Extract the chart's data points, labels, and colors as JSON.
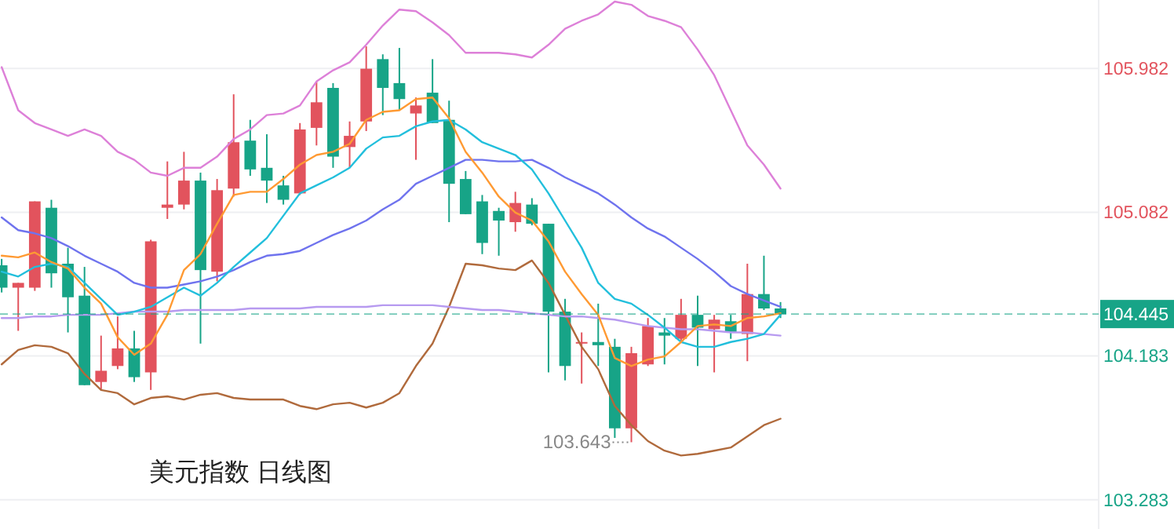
{
  "chart_data": {
    "type": "candlestick",
    "title": "美元指数 日线图",
    "categories": [
      null,
      null,
      null,
      null,
      null,
      null,
      null,
      null,
      null,
      null,
      null,
      null,
      null,
      null,
      null,
      null,
      null,
      null,
      null,
      null,
      null,
      null,
      null,
      null,
      null,
      null,
      null,
      null,
      null,
      null,
      null,
      null,
      null,
      null,
      null,
      null,
      null,
      null,
      null,
      null,
      null,
      null,
      null,
      null,
      null,
      null,
      null,
      null
    ],
    "ohlc": [
      [
        104.75,
        104.79,
        104.58,
        104.61
      ],
      [
        104.61,
        104.64,
        104.34,
        104.64
      ],
      [
        104.61,
        105.15,
        104.59,
        105.15
      ],
      [
        105.11,
        105.16,
        104.61,
        104.7
      ],
      [
        104.76,
        104.86,
        104.33,
        104.55
      ],
      [
        104.56,
        104.74,
        104.0,
        104.0
      ],
      [
        104.02,
        104.31,
        103.97,
        104.09
      ],
      [
        104.12,
        104.43,
        104.1,
        104.23
      ],
      [
        104.23,
        104.34,
        104.02,
        104.05
      ],
      [
        104.08,
        104.91,
        103.97,
        104.9
      ],
      [
        105.11,
        105.4,
        105.04,
        105.13
      ],
      [
        105.13,
        105.46,
        105.1,
        105.28
      ],
      [
        105.28,
        105.33,
        104.26,
        104.72
      ],
      [
        104.71,
        105.29,
        104.65,
        105.22
      ],
      [
        105.23,
        105.82,
        105.18,
        105.52
      ],
      [
        105.53,
        105.66,
        105.31,
        105.35
      ],
      [
        105.36,
        105.57,
        105.14,
        105.28
      ],
      [
        105.25,
        105.31,
        105.13,
        105.16
      ],
      [
        105.2,
        105.64,
        105.19,
        105.6
      ],
      [
        105.61,
        105.9,
        105.5,
        105.77
      ],
      [
        105.86,
        105.89,
        105.36,
        105.43
      ],
      [
        105.49,
        105.65,
        105.36,
        105.56
      ],
      [
        105.65,
        106.12,
        105.59,
        105.98
      ],
      [
        106.04,
        106.07,
        105.69,
        105.86
      ],
      [
        105.89,
        106.11,
        105.72,
        105.79
      ],
      [
        105.7,
        105.8,
        105.41,
        105.75
      ],
      [
        105.83,
        106.04,
        105.64,
        105.64
      ],
      [
        105.66,
        105.78,
        105.02,
        105.26
      ],
      [
        105.29,
        105.34,
        105.07,
        105.07
      ],
      [
        105.15,
        105.19,
        104.82,
        104.89
      ],
      [
        105.09,
        105.11,
        104.81,
        105.03
      ],
      [
        105.02,
        105.21,
        104.96,
        105.14
      ],
      [
        105.13,
        105.17,
        105.0,
        105.01
      ],
      [
        105.01,
        105.01,
        104.08,
        104.46
      ],
      [
        104.46,
        104.54,
        104.03,
        104.12
      ],
      [
        104.26,
        104.33,
        104.01,
        104.27
      ],
      [
        104.27,
        104.51,
        104.12,
        104.25
      ],
      [
        104.24,
        104.29,
        103.67,
        103.73
      ],
      [
        103.73,
        104.24,
        103.643,
        104.2
      ],
      [
        104.13,
        104.42,
        104.12,
        104.37
      ],
      [
        104.33,
        104.42,
        104.13,
        104.31
      ],
      [
        104.29,
        104.54,
        104.27,
        104.44
      ],
      [
        104.44,
        104.56,
        104.12,
        104.36
      ],
      [
        104.35,
        104.44,
        104.08,
        104.41
      ],
      [
        104.4,
        104.44,
        104.29,
        104.33
      ],
      [
        104.32,
        104.76,
        104.15,
        104.57
      ],
      [
        104.57,
        104.81,
        104.47,
        104.48
      ],
      [
        104.48,
        104.52,
        104.42,
        104.445
      ]
    ],
    "colors": [
      "#17a487",
      "#e2535d",
      "#e2535d",
      "#17a487",
      "#17a487",
      "#17a487",
      "#e2535d",
      "#e2535d",
      "#17a487",
      "#e2535d",
      "#e2535d",
      "#e2535d",
      "#17a487",
      "#e2535d",
      "#e2535d",
      "#17a487",
      "#17a487",
      "#17a487",
      "#e2535d",
      "#e2535d",
      "#17a487",
      "#e2535d",
      "#e2535d",
      "#17a487",
      "#17a487",
      "#e2535d",
      "#17a487",
      "#17a487",
      "#17a487",
      "#17a487",
      "#17a487",
      "#e2535d",
      "#17a487",
      "#17a487",
      "#17a487",
      "#e2535d",
      "#17a487",
      "#17a487",
      "#e2535d",
      "#e2535d",
      "#17a487",
      "#e2535d",
      "#17a487",
      "#e2535d",
      "#17a487",
      "#e2535d",
      "#17a487",
      "#17a487"
    ],
    "series": [
      {
        "type": "line",
        "color": "#dd80d8",
        "values": [
          105.99,
          105.72,
          105.64,
          105.6,
          105.56,
          105.6,
          105.56,
          105.46,
          105.41,
          105.33,
          105.31,
          105.36,
          105.36,
          105.43,
          105.54,
          105.6,
          105.69,
          105.7,
          105.75,
          105.9,
          105.97,
          106.02,
          106.13,
          106.25,
          106.35,
          106.34,
          106.27,
          106.19,
          106.08,
          106.08,
          106.08,
          106.07,
          106.05,
          106.13,
          106.23,
          106.28,
          106.32,
          106.4,
          106.38,
          106.31,
          106.28,
          106.24,
          106.1,
          105.94,
          105.72,
          105.5,
          105.38,
          105.23
        ]
      },
      {
        "type": "line",
        "color": "#b06a3c",
        "values": [
          104.13,
          104.22,
          104.25,
          104.24,
          104.2,
          104.07,
          103.97,
          103.95,
          103.88,
          103.92,
          103.93,
          103.91,
          103.94,
          103.95,
          103.92,
          103.91,
          103.91,
          103.91,
          103.87,
          103.85,
          103.88,
          103.89,
          103.86,
          103.89,
          103.95,
          104.12,
          104.26,
          104.49,
          104.76,
          104.75,
          104.73,
          104.72,
          104.78,
          104.64,
          104.44,
          104.24,
          104.1,
          103.87,
          103.75,
          103.65,
          103.59,
          103.56,
          103.57,
          103.59,
          103.61,
          103.68,
          103.75,
          103.79
        ]
      },
      {
        "type": "line",
        "color": "#b79af0",
        "values": [
          104.42,
          104.42,
          104.43,
          104.43,
          104.44,
          104.44,
          104.44,
          104.45,
          104.46,
          104.46,
          104.46,
          104.47,
          104.47,
          104.47,
          104.47,
          104.48,
          104.48,
          104.48,
          104.48,
          104.49,
          104.49,
          104.49,
          104.49,
          104.5,
          104.5,
          104.5,
          104.5,
          104.49,
          104.48,
          104.47,
          104.47,
          104.46,
          104.45,
          104.44,
          104.43,
          104.43,
          104.42,
          104.41,
          104.39,
          104.37,
          104.36,
          104.35,
          104.35,
          104.34,
          104.33,
          104.33,
          104.32,
          104.31
        ]
      },
      {
        "type": "line",
        "color": "#6f73ee",
        "values": [
          105.05,
          104.97,
          104.95,
          104.92,
          104.87,
          104.81,
          104.76,
          104.71,
          104.64,
          104.61,
          104.61,
          104.63,
          104.65,
          104.68,
          104.72,
          104.77,
          104.81,
          104.82,
          104.84,
          104.89,
          104.94,
          104.98,
          105.03,
          105.1,
          105.16,
          105.26,
          105.31,
          105.36,
          105.41,
          105.41,
          105.4,
          105.4,
          105.41,
          105.36,
          105.3,
          105.25,
          105.2,
          105.13,
          105.05,
          104.98,
          104.93,
          104.86,
          104.79,
          104.71,
          104.62,
          104.57,
          104.53,
          104.49
        ]
      },
      {
        "type": "line",
        "color": "#22bfdc",
        "values": [
          104.71,
          104.68,
          104.74,
          104.76,
          104.74,
          104.64,
          104.54,
          104.44,
          104.46,
          104.49,
          104.55,
          104.61,
          104.56,
          104.64,
          104.74,
          104.83,
          104.92,
          105.06,
          105.2,
          105.25,
          105.3,
          105.36,
          105.48,
          105.55,
          105.56,
          105.62,
          105.65,
          105.66,
          105.6,
          105.52,
          105.48,
          105.44,
          105.35,
          105.2,
          105.03,
          104.86,
          104.64,
          104.54,
          104.51,
          104.44,
          104.36,
          104.27,
          104.24,
          104.24,
          104.27,
          104.29,
          104.32,
          104.44
        ]
      },
      {
        "type": "line",
        "color": "#ff9a33",
        "values": [
          104.81,
          104.8,
          104.83,
          104.77,
          104.73,
          104.61,
          104.51,
          104.3,
          104.19,
          104.26,
          104.44,
          104.72,
          104.82,
          105.01,
          105.19,
          105.21,
          105.21,
          105.29,
          105.38,
          105.44,
          105.46,
          105.51,
          105.66,
          105.71,
          105.72,
          105.79,
          105.8,
          105.67,
          105.46,
          105.33,
          105.18,
          105.08,
          105.03,
          104.9,
          104.71,
          104.57,
          104.44,
          104.17,
          104.12,
          104.16,
          104.18,
          104.27,
          104.37,
          104.38,
          104.37,
          104.42,
          104.43,
          104.45
        ]
      }
    ],
    "ylim": [
      103.1,
      106.41
    ],
    "yticks": [
      105.982,
      105.082,
      104.183,
      103.283
    ],
    "grid": "y",
    "tick_labels": "y",
    "ref_lines": [
      {
        "axis": "y",
        "value": 104.445,
        "label": "104.445",
        "color": "#17a487",
        "line_style": "dashed"
      }
    ],
    "annotations": [
      "103.643"
    ]
  }
}
